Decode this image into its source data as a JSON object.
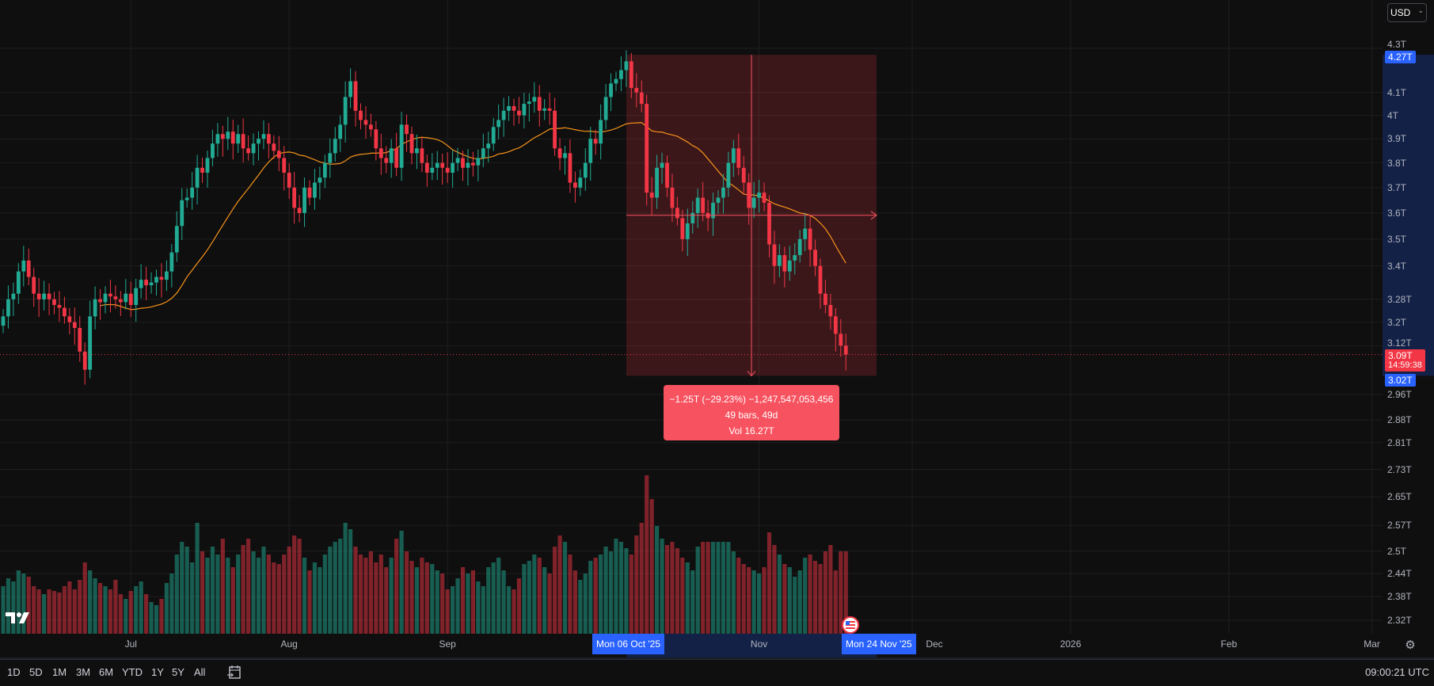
{
  "currency_selector": {
    "value": "USD"
  },
  "price_axis": {
    "scale": "log",
    "ticks": [
      {
        "value": 4.3,
        "label": "4.3T"
      },
      {
        "value": 4.1,
        "label": "4.1T"
      },
      {
        "value": 4.0,
        "label": "4T"
      },
      {
        "value": 3.9,
        "label": "3.9T"
      },
      {
        "value": 3.8,
        "label": "3.8T"
      },
      {
        "value": 3.7,
        "label": "3.7T"
      },
      {
        "value": 3.6,
        "label": "3.6T"
      },
      {
        "value": 3.5,
        "label": "3.5T"
      },
      {
        "value": 3.4,
        "label": "3.4T"
      },
      {
        "value": 3.28,
        "label": "3.28T"
      },
      {
        "value": 3.2,
        "label": "3.2T"
      },
      {
        "value": 3.12,
        "label": "3.12T"
      },
      {
        "value": 2.96,
        "label": "2.96T"
      },
      {
        "value": 2.88,
        "label": "2.88T"
      },
      {
        "value": 2.81,
        "label": "2.81T"
      },
      {
        "value": 2.73,
        "label": "2.73T"
      },
      {
        "value": 2.65,
        "label": "2.65T"
      },
      {
        "value": 2.57,
        "label": "2.57T"
      },
      {
        "value": 2.5,
        "label": "2.5T"
      },
      {
        "value": 2.44,
        "label": "2.44T"
      },
      {
        "value": 2.38,
        "label": "2.38T"
      },
      {
        "value": 2.32,
        "label": "2.32T"
      }
    ],
    "range_high": {
      "value": 4.27,
      "label": "4.27T"
    },
    "range_low": {
      "value": 3.02,
      "label": "3.02T"
    },
    "last_price": {
      "value": 3.09,
      "label": "3.09T",
      "countdown": "14:59:38"
    }
  },
  "time_axis": {
    "labels": [
      "Jul",
      "Aug",
      "Sep",
      "Nov",
      "Dec",
      "2026",
      "Feb",
      "Mar"
    ],
    "range_start": "Mon 06 Oct '25",
    "range_end": "Mon 24 Nov '25"
  },
  "measure_tooltip": {
    "line1": "−1.25T (−29.23%) −1,247,547,053,456",
    "line2": "49 bars, 49d",
    "line3": "Vol 16.27T"
  },
  "toolbar": {
    "ranges": [
      "1D",
      "5D",
      "1M",
      "3M",
      "6M",
      "YTD",
      "1Y",
      "5Y",
      "All"
    ],
    "clock": "09:00:21 UTC"
  },
  "colors": {
    "up": "#22ab94",
    "down": "#f23645",
    "ma": "#f7931a",
    "accent": "#2962ff",
    "measure": "#f7525f",
    "background": "#0f0f0f"
  },
  "chart_data": {
    "type": "candlestick",
    "interval": "1D",
    "first_date": "2025-06-06",
    "y_scale": "log",
    "ylim": [
      2.32,
      4.3
    ],
    "units": "T",
    "grid": true,
    "close": [
      3.22,
      3.28,
      3.3,
      3.38,
      3.42,
      3.36,
      3.3,
      3.28,
      3.3,
      3.28,
      3.26,
      3.25,
      3.22,
      3.2,
      3.18,
      3.1,
      3.04,
      3.22,
      3.28,
      3.27,
      3.3,
      3.29,
      3.28,
      3.27,
      3.3,
      3.26,
      3.32,
      3.35,
      3.33,
      3.34,
      3.36,
      3.35,
      3.38,
      3.45,
      3.55,
      3.65,
      3.66,
      3.7,
      3.78,
      3.76,
      3.82,
      3.88,
      3.92,
      3.9,
      3.93,
      3.88,
      3.92,
      3.86,
      3.84,
      3.88,
      3.9,
      3.92,
      3.88,
      3.85,
      3.82,
      3.76,
      3.7,
      3.62,
      3.6,
      3.7,
      3.66,
      3.72,
      3.74,
      3.8,
      3.84,
      3.9,
      3.96,
      4.08,
      4.15,
      4.02,
      3.98,
      3.96,
      3.94,
      3.86,
      3.82,
      3.8,
      3.86,
      3.78,
      3.96,
      3.92,
      3.84,
      3.86,
      3.8,
      3.76,
      3.78,
      3.8,
      3.78,
      3.76,
      3.8,
      3.82,
      3.78,
      3.8,
      3.79,
      3.82,
      3.86,
      3.88,
      3.95,
      3.98,
      4.02,
      4.04,
      4.02,
      4.0,
      4.05,
      4.06,
      4.08,
      4.02,
      4.03,
      4.02,
      3.86,
      3.82,
      3.84,
      3.72,
      3.7,
      3.74,
      3.8,
      3.9,
      3.88,
      3.98,
      4.08,
      4.14,
      4.16,
      4.2,
      4.24,
      4.12,
      4.1,
      4.05,
      3.68,
      3.66,
      3.78,
      3.8,
      3.7,
      3.62,
      3.58,
      3.5,
      3.56,
      3.6,
      3.66,
      3.6,
      3.58,
      3.64,
      3.66,
      3.7,
      3.8,
      3.86,
      3.78,
      3.72,
      3.62,
      3.66,
      3.68,
      3.64,
      3.48,
      3.4,
      3.44,
      3.38,
      3.42,
      3.44,
      3.5,
      3.54,
      3.46,
      3.4,
      3.3,
      3.26,
      3.22,
      3.16,
      3.12,
      3.09
    ],
    "volume": [
      30,
      35,
      33,
      40,
      38,
      36,
      30,
      28,
      25,
      28,
      27,
      26,
      30,
      33,
      28,
      34,
      45,
      40,
      35,
      32,
      30,
      28,
      34,
      25,
      22,
      27,
      30,
      33,
      25,
      20,
      18,
      22,
      32,
      38,
      50,
      58,
      55,
      45,
      70,
      52,
      48,
      55,
      50,
      60,
      48,
      42,
      50,
      56,
      60,
      52,
      48,
      55,
      50,
      45,
      44,
      50,
      55,
      62,
      60,
      48,
      40,
      45,
      42,
      50,
      55,
      58,
      60,
      70,
      66,
      55,
      50,
      48,
      52,
      45,
      50,
      42,
      48,
      60,
      65,
      52,
      46,
      42,
      48,
      45,
      44,
      40,
      38,
      28,
      30,
      35,
      42,
      38,
      40,
      33,
      30,
      42,
      45,
      48,
      40,
      30,
      28,
      35,
      44,
      46,
      50,
      48,
      42,
      38,
      55,
      62,
      58,
      50,
      40,
      34,
      38,
      46,
      48,
      50,
      55,
      52,
      60,
      58,
      54,
      50,
      62,
      70,
      100,
      85,
      68,
      60,
      56,
      58,
      54,
      48,
      45,
      40,
      55,
      58,
      58,
      58,
      58,
      58,
      58,
      52,
      48,
      44,
      42,
      40,
      38,
      42,
      64,
      56,
      50,
      44,
      42,
      36,
      40,
      48,
      50,
      46,
      44,
      52,
      56,
      40,
      52,
      52
    ],
    "measure": {
      "from": "2025-10-06",
      "to": "2025-11-24",
      "high": 4.27,
      "low": 3.02
    }
  }
}
